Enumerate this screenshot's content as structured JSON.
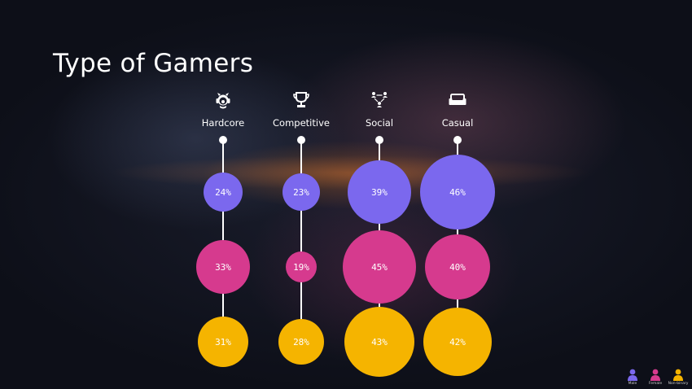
{
  "title": "Type of Gamers",
  "chart_data": {
    "type": "bubble",
    "categories": [
      "Hardcore",
      "Competitive",
      "Social",
      "Casual"
    ],
    "category_icons": [
      "headset-gamer-icon",
      "trophy-icon",
      "network-people-icon",
      "couch-icon"
    ],
    "series": [
      {
        "name": "Male",
        "values": [
          24,
          23,
          39,
          46
        ],
        "color": "#7b68ee"
      },
      {
        "name": "Female",
        "values": [
          33,
          19,
          45,
          40
        ],
        "color": "#d63a8e"
      },
      {
        "name": "Non-binary",
        "values": [
          31,
          28,
          43,
          42
        ],
        "color": "#f5b400"
      }
    ],
    "value_suffix": "%"
  }
}
